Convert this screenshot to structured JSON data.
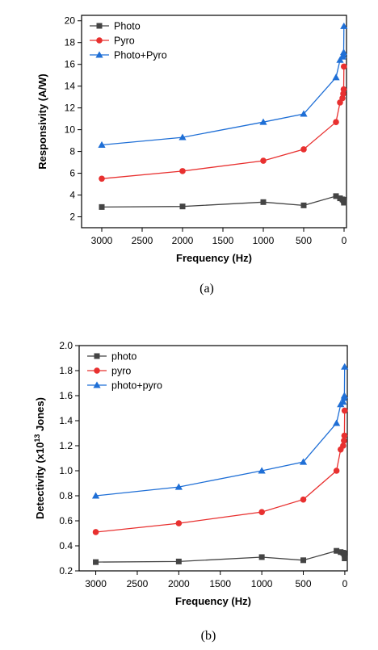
{
  "chart_data": [
    {
      "type": "line",
      "xlabel": "Frequency (Hz)",
      "ylabel": "Responsivity (A/W)",
      "xlim": [
        3250,
        -30
      ],
      "ylim": [
        1,
        20.5
      ],
      "x_reversed": true,
      "xticks": [
        3000,
        2500,
        2000,
        1500,
        1000,
        500,
        0
      ],
      "yticks": [
        2,
        4,
        6,
        8,
        10,
        12,
        14,
        16,
        18,
        20
      ],
      "legend_position": "top-left",
      "caption": "(a)",
      "x": [
        3000,
        2000,
        1000,
        500,
        100,
        50,
        20,
        10,
        5,
        2
      ],
      "series": [
        {
          "name": "Photo",
          "color": "#444444",
          "marker": "square",
          "values": [
            2.9,
            2.95,
            3.35,
            3.05,
            3.9,
            3.7,
            3.6,
            3.55,
            3.5,
            3.3
          ]
        },
        {
          "name": "Pyro",
          "color": "#e8302f",
          "marker": "circle",
          "values": [
            5.5,
            6.2,
            7.15,
            8.2,
            10.7,
            12.5,
            12.9,
            13.3,
            13.7,
            15.8
          ]
        },
        {
          "name": "Photo+Pyro",
          "color": "#1f6fd6",
          "marker": "triangle",
          "values": [
            8.6,
            9.3,
            10.7,
            11.45,
            14.8,
            16.4,
            16.7,
            16.85,
            17.1,
            19.5
          ]
        }
      ]
    },
    {
      "type": "line",
      "xlabel": "Frequency (Hz)",
      "ylabel": "Detectivity (x10",
      "ylabel_exp": "13",
      "ylabel_end": " Jones)",
      "xlim": [
        3200,
        -30
      ],
      "ylim": [
        0.2,
        2.0
      ],
      "x_reversed": true,
      "xticks": [
        3000,
        2500,
        2000,
        1500,
        1000,
        500,
        0
      ],
      "yticks": [
        0.2,
        0.4,
        0.6,
        0.8,
        1.0,
        1.2,
        1.4,
        1.6,
        1.8,
        2.0
      ],
      "ytick_labels": [
        "0.2",
        "0.4",
        "0.6",
        "0.8",
        "1.0",
        "1.2",
        "1.4",
        "1.6",
        "1.8",
        "2.0"
      ],
      "legend_position": "top-left",
      "caption": "(b)",
      "x": [
        3000,
        2000,
        1000,
        500,
        100,
        50,
        20,
        10,
        5,
        2
      ],
      "series": [
        {
          "name": "photo",
          "color": "#444444",
          "marker": "square",
          "values": [
            0.27,
            0.275,
            0.31,
            0.285,
            0.36,
            0.35,
            0.345,
            0.34,
            0.33,
            0.3
          ]
        },
        {
          "name": "pyro",
          "color": "#e8302f",
          "marker": "circle",
          "values": [
            0.51,
            0.58,
            0.67,
            0.77,
            1.0,
            1.17,
            1.2,
            1.24,
            1.28,
            1.48
          ]
        },
        {
          "name": "photo+pyro",
          "color": "#1f6fd6",
          "marker": "triangle",
          "values": [
            0.8,
            0.87,
            1.0,
            1.07,
            1.38,
            1.53,
            1.55,
            1.58,
            1.6,
            1.83
          ]
        }
      ]
    }
  ]
}
